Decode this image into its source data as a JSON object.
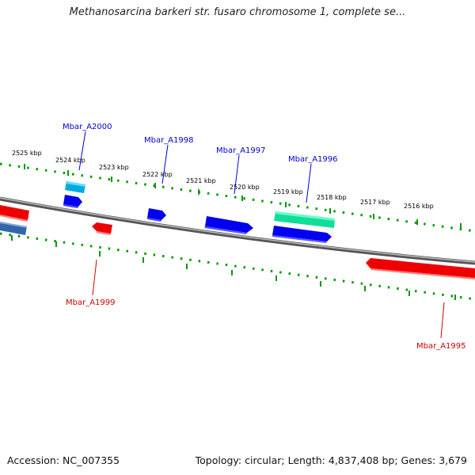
{
  "title": "Methanosarcina barkeri str. fusaro chromosome 1, complete se...",
  "footer": {
    "accession": "Accession: NC_007355",
    "summary": "Topology: circular; Length: 4,837,408 bp; Genes: 3,679"
  },
  "colors": {
    "forward_gene": "#0000ee",
    "reverse_gene": "#ee0000",
    "forward_label": "#0000cc",
    "reverse_label": "#cc0000",
    "tick": "#009900",
    "backbone": "#888888"
  },
  "ticks": [
    "2525 kbp",
    "2524 kbp",
    "2523 kbp",
    "2522 kbp",
    "2521 kbp",
    "2520 kbp",
    "2519 kbp",
    "2518 kbp",
    "2517 kbp",
    "2516 kbp"
  ],
  "genes_forward": [
    "Mbar_A2000",
    "Mbar_A1998",
    "Mbar_A1997",
    "Mbar_A1996"
  ],
  "genes_reverse": [
    "Mbar_A1999",
    "Mbar_A1995"
  ]
}
